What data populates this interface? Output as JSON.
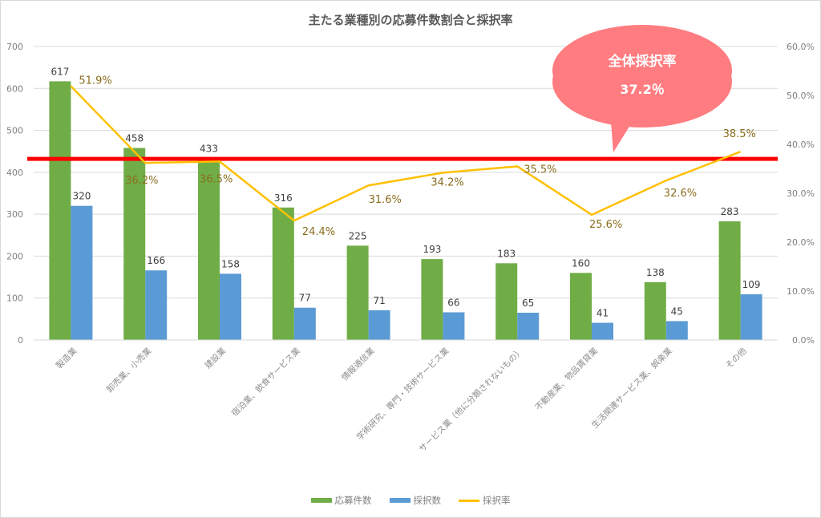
{
  "chart_data": {
    "type": "bar",
    "title": "主たる業種別の応募件数割合と採択率",
    "categories": [
      "製造業",
      "卸売業、小売業",
      "建設業",
      "宿泊業、飲食サービス業",
      "情報通信業",
      "学術研究、専門・技術サービス業",
      "サービス業（他に分類されないもの）",
      "不動産業、物品賃貸業",
      "生活関連サービス業、娯楽業",
      "その他"
    ],
    "series": [
      {
        "name": "応募件数",
        "type": "bar",
        "axis": "left",
        "color": "#70ad47",
        "values": [
          617,
          458,
          433,
          316,
          225,
          193,
          183,
          160,
          138,
          283
        ]
      },
      {
        "name": "採択数",
        "type": "bar",
        "axis": "left",
        "color": "#5b9bd5",
        "values": [
          320,
          166,
          158,
          77,
          71,
          66,
          65,
          41,
          45,
          109
        ]
      },
      {
        "name": "採択率",
        "type": "line",
        "axis": "right",
        "color": "#ffc000",
        "values": [
          51.9,
          36.2,
          36.5,
          24.4,
          31.6,
          34.2,
          35.5,
          25.6,
          32.6,
          38.5
        ]
      }
    ],
    "rate_labels": [
      "51.9%",
      "36.2%",
      "36.5%",
      "24.4%",
      "31.6%",
      "34.2%",
      "35.5%",
      "25.6%",
      "32.6%",
      "38.5%"
    ],
    "left_axis": {
      "ylim": [
        0,
        700
      ],
      "ticks": [
        "0",
        "100",
        "200",
        "300",
        "400",
        "500",
        "600",
        "700"
      ]
    },
    "right_axis": {
      "ylim": [
        0,
        60
      ],
      "ticks": [
        "0.0%",
        "10.0%",
        "20.0%",
        "30.0%",
        "40.0%",
        "50.0%",
        "60.0%"
      ]
    },
    "reference_line": {
      "label": "全体採択率",
      "value": 37.2,
      "value_label": "37.2％",
      "color": "#ff0000"
    },
    "annotation": {
      "line1": "全体採択率",
      "line2": "37.2％",
      "color": "#ff7c80"
    },
    "grid": true,
    "legend_position": "bottom",
    "xlabel": "",
    "ylabel": ""
  }
}
